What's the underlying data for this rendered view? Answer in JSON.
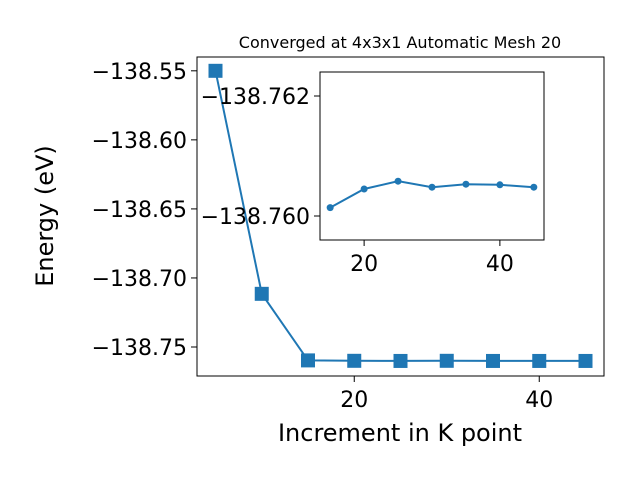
{
  "chart_data": [
    {
      "type": "line",
      "title": "Converged at 4x3x1 Automatic Mesh 20",
      "xlabel": "Increment in K point",
      "ylabel": "Energy (eV)",
      "xlim": [
        3,
        47
      ],
      "ylim": [
        -138.771,
        -138.54
      ],
      "x": [
        5,
        10,
        15,
        20,
        25,
        30,
        35,
        40,
        45
      ],
      "series": [
        {
          "values": [
            -138.55,
            -138.7115,
            -138.7597,
            -138.76,
            -138.7601,
            -138.76,
            -138.7601,
            -138.7601,
            -138.7601
          ],
          "color": "#1f77b4",
          "marker": "square"
        }
      ],
      "xticks": [
        20,
        40
      ],
      "yticks": [
        -138.55,
        -138.6,
        -138.65,
        -138.7,
        -138.75
      ],
      "ytick_labels": [
        "−138.55",
        "−138.60",
        "−138.65",
        "−138.70",
        "−138.75"
      ],
      "grid": false
    },
    {
      "type": "line",
      "xlim": [
        13.5,
        46.5
      ],
      "ylim": [
        -138.7596,
        -138.7624
      ],
      "x": [
        15,
        20,
        25,
        30,
        35,
        40,
        45
      ],
      "series": [
        {
          "values": [
            -138.76014,
            -138.76045,
            -138.76058,
            -138.76048,
            -138.76053,
            -138.76052,
            -138.76048
          ],
          "color": "#1f77b4",
          "marker": "circle"
        }
      ],
      "xticks": [
        20,
        40
      ],
      "yticks": [
        -138.762,
        -138.76
      ],
      "ytick_labels": [
        "−138.762",
        "−138.760"
      ],
      "grid": false
    }
  ]
}
